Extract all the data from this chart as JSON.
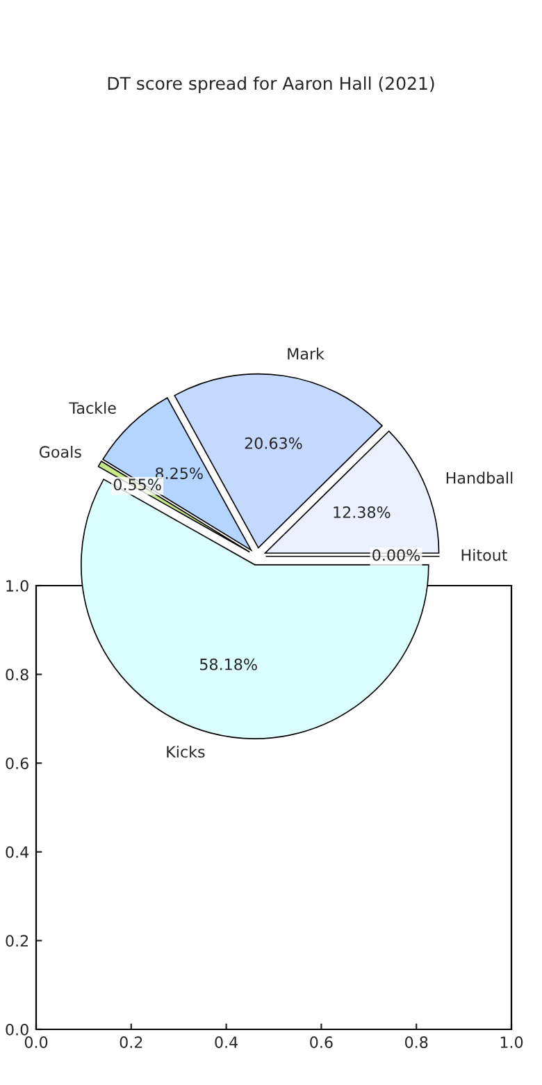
{
  "chart_data": [
    {
      "type": "pie",
      "title": "DT score spread for Aaron Hall (2021)",
      "categories": [
        "Kicks",
        "Hitout",
        "Handball",
        "Mark",
        "Tackle",
        "Goals"
      ],
      "values": [
        58.18,
        0.0,
        12.38,
        20.63,
        8.25,
        0.55
      ],
      "value_labels": [
        "58.18%",
        "0.00%",
        "12.38%",
        "20.63%",
        "8.25%",
        "0.55%"
      ],
      "colors": [
        "#dafffd",
        "#f0f0ff",
        "#eaf0ff",
        "#c5d9ff",
        "#b3d5ff",
        "#c8e885"
      ]
    },
    {
      "type": "scatter",
      "xlim": [
        0,
        1
      ],
      "ylim": [
        0,
        1
      ],
      "xticks": [
        {
          "value": 0,
          "label": "0.0"
        },
        {
          "value": 0.2,
          "label": "0.2"
        },
        {
          "value": 0.4,
          "label": "0.4"
        },
        {
          "value": 0.6,
          "label": "0.6"
        },
        {
          "value": 0.8,
          "label": "0.8"
        },
        {
          "value": 1,
          "label": "1.0"
        }
      ],
      "yticks": [
        {
          "value": 0,
          "label": "0.0"
        },
        {
          "value": 0.2,
          "label": "0.2"
        },
        {
          "value": 0.4,
          "label": "0.4"
        },
        {
          "value": 0.6,
          "label": "0.6"
        },
        {
          "value": 0.8,
          "label": "0.8"
        },
        {
          "value": 1,
          "label": "1.0"
        }
      ]
    }
  ]
}
